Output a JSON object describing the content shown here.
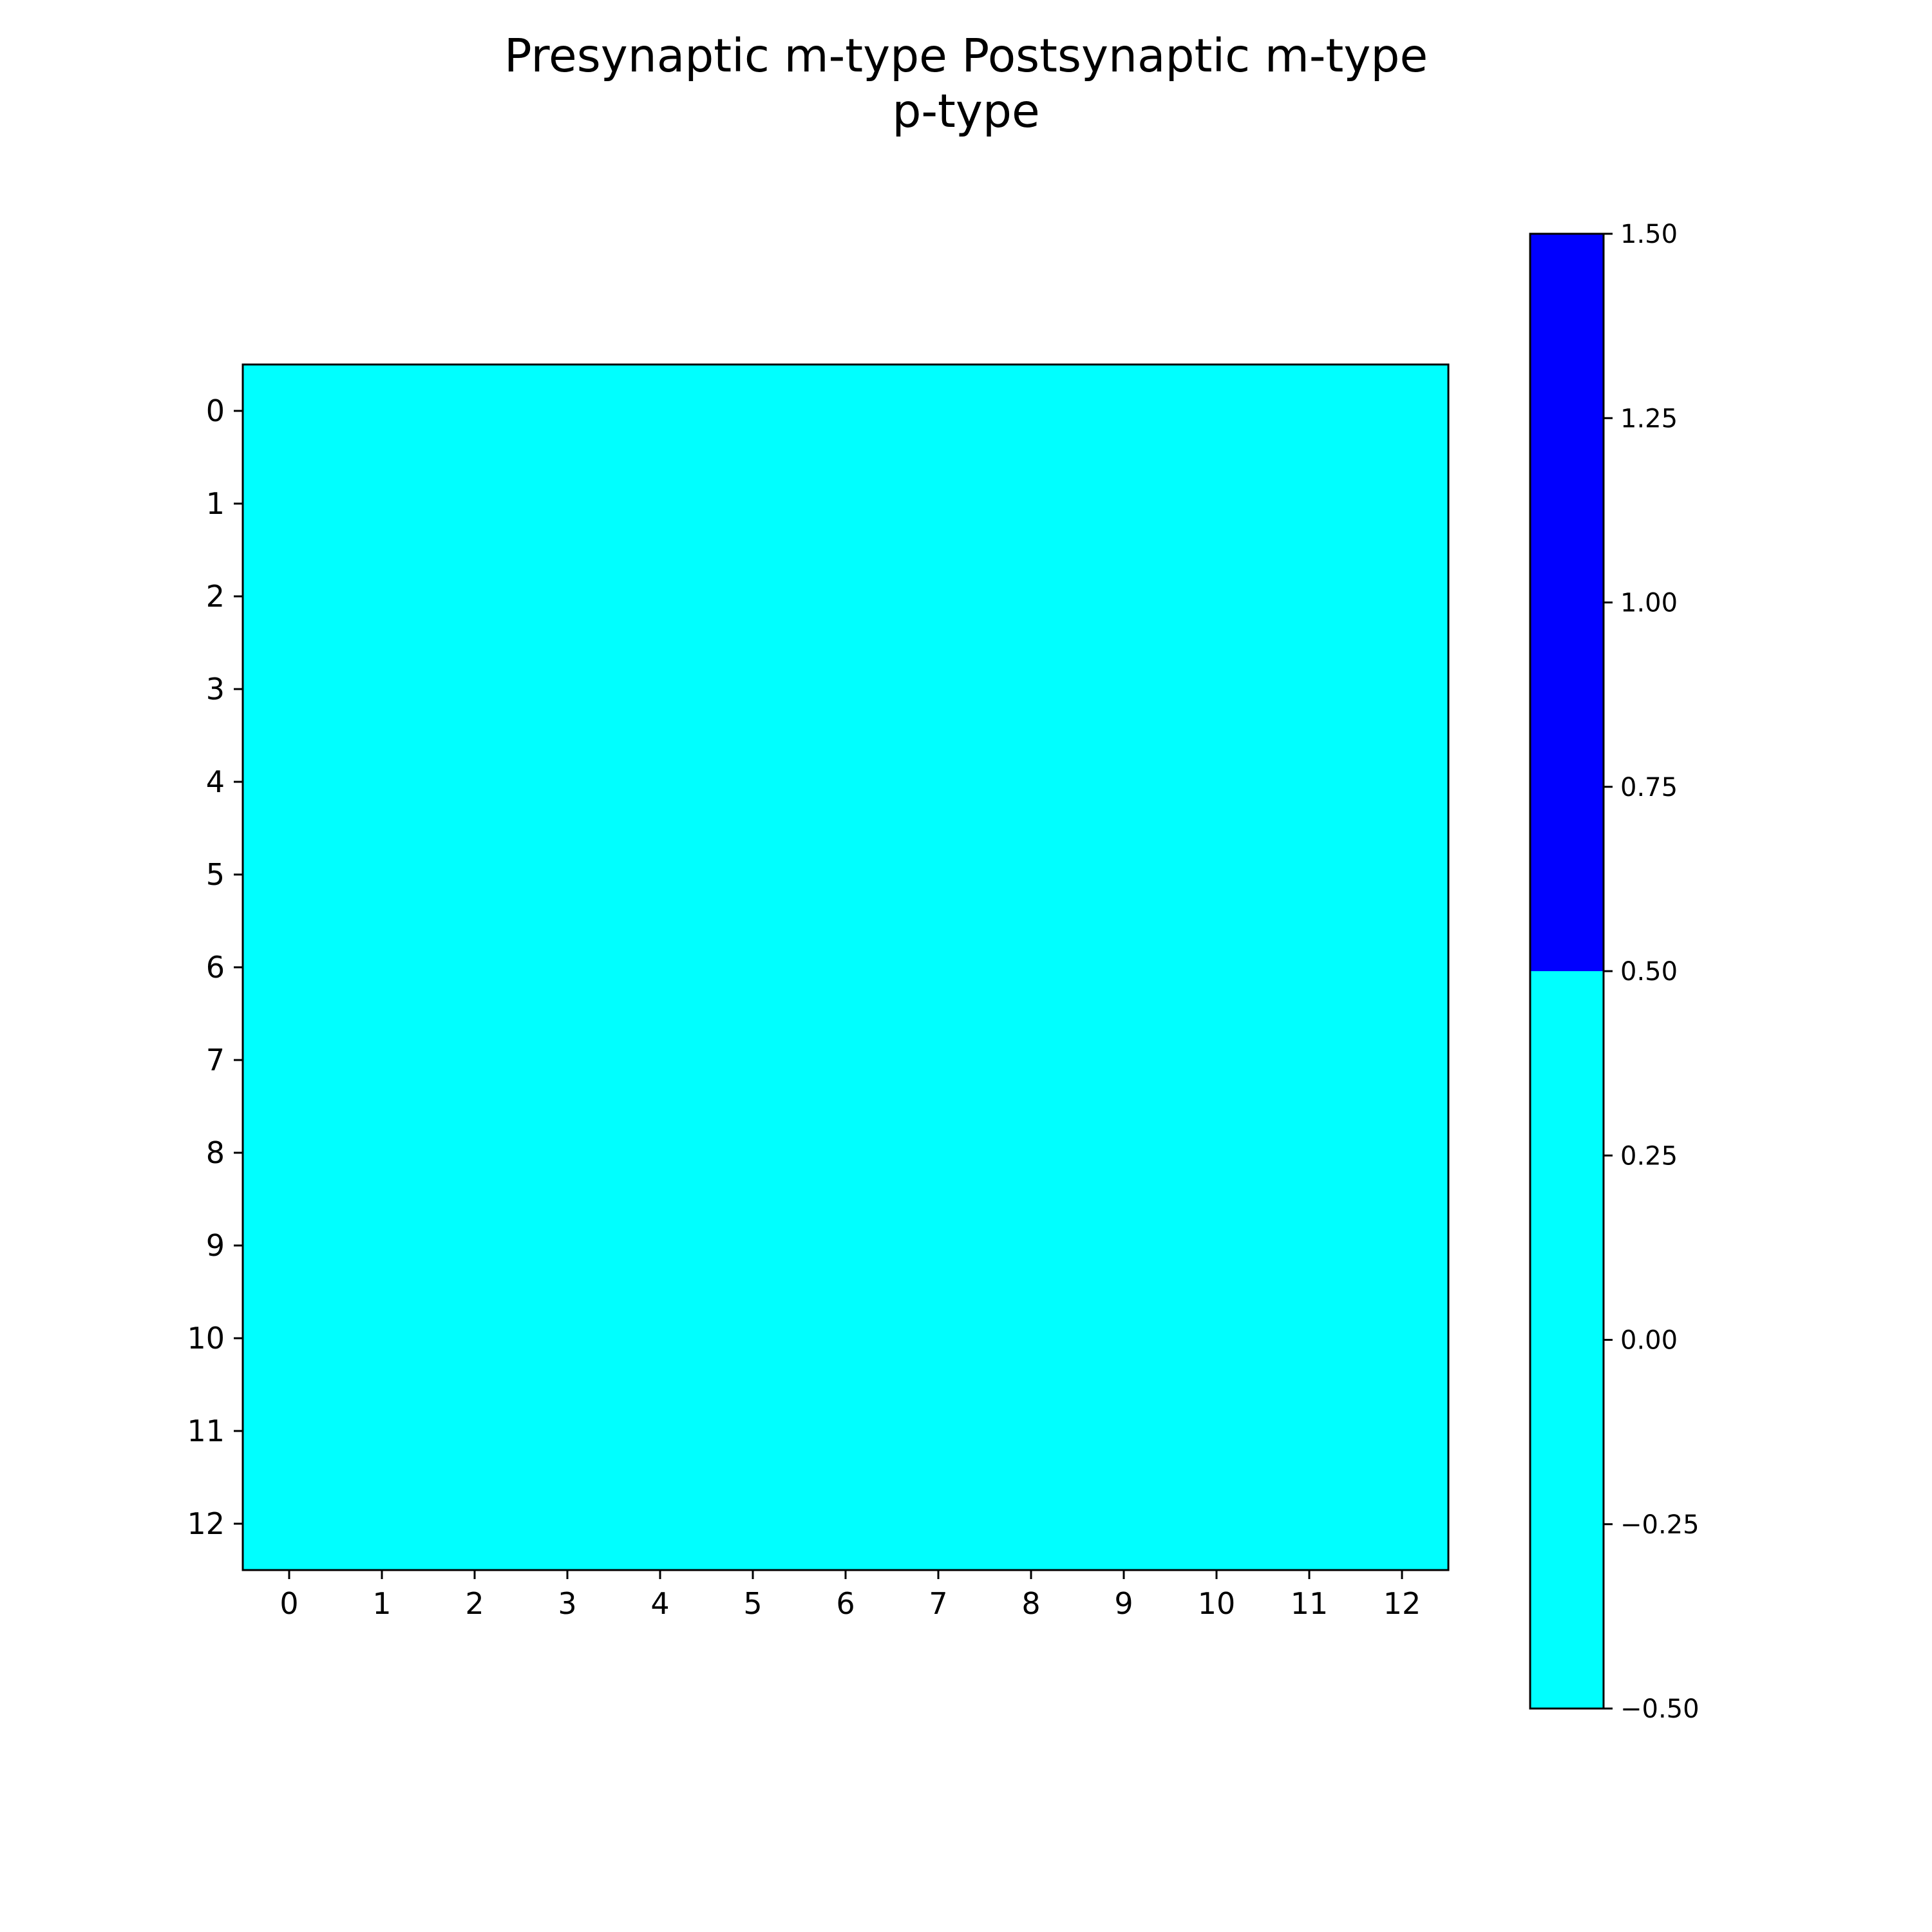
{
  "chart_data": {
    "type": "heatmap",
    "title_lines": [
      "Presynaptic m-type Postsynaptic m-type",
      "p-type"
    ],
    "xlabel": "",
    "ylabel": "",
    "x_categories": [
      "0",
      "1",
      "2",
      "3",
      "4",
      "5",
      "6",
      "7",
      "8",
      "9",
      "10",
      "11",
      "12"
    ],
    "y_categories": [
      "0",
      "1",
      "2",
      "3",
      "4",
      "5",
      "6",
      "7",
      "8",
      "9",
      "10",
      "11",
      "12"
    ],
    "matrix": [
      [
        0,
        0,
        0,
        0,
        0,
        0,
        0,
        0,
        0,
        0,
        0,
        0,
        0
      ],
      [
        0,
        0,
        0,
        0,
        0,
        0,
        0,
        0,
        0,
        0,
        0,
        0,
        0
      ],
      [
        0,
        0,
        0,
        0,
        0,
        0,
        0,
        0,
        0,
        0,
        0,
        0,
        0
      ],
      [
        0,
        0,
        0,
        0,
        0,
        0,
        0,
        0,
        0,
        0,
        0,
        0,
        0
      ],
      [
        0,
        0,
        0,
        0,
        0,
        0,
        0,
        0,
        0,
        0,
        0,
        0,
        0
      ],
      [
        0,
        0,
        0,
        0,
        0,
        0,
        0,
        0,
        0,
        0,
        0,
        0,
        0
      ],
      [
        0,
        0,
        0,
        0,
        0,
        0,
        0,
        0,
        0,
        0,
        0,
        0,
        0
      ],
      [
        0,
        0,
        0,
        0,
        0,
        0,
        0,
        0,
        0,
        0,
        0,
        0,
        0
      ],
      [
        0,
        0,
        0,
        0,
        0,
        0,
        0,
        0,
        0,
        0,
        0,
        0,
        0
      ],
      [
        0,
        0,
        0,
        0,
        0,
        0,
        0,
        0,
        0,
        0,
        0,
        0,
        0
      ],
      [
        0,
        0,
        0,
        0,
        0,
        0,
        0,
        0,
        0,
        0,
        0,
        0,
        0
      ],
      [
        0,
        0,
        0,
        0,
        0,
        0,
        0,
        0,
        0,
        0,
        0,
        0,
        0
      ],
      [
        0,
        0,
        0,
        0,
        0,
        0,
        0,
        0,
        0,
        0,
        0,
        0,
        0
      ]
    ],
    "colormap": [
      {
        "value": 0,
        "color": "#00ffff"
      },
      {
        "value": 1,
        "color": "#0000ff"
      }
    ],
    "colorbar": {
      "range": [
        -0.5,
        1.5
      ],
      "boundary": 0.5,
      "ticks": [
        -0.5,
        -0.25,
        0.0,
        0.25,
        0.5,
        0.75,
        1.0,
        1.25,
        1.5
      ],
      "tick_labels": [
        "−0.50",
        "−0.25",
        "0.00",
        "0.25",
        "0.50",
        "0.75",
        "1.00",
        "1.25",
        "1.50"
      ]
    },
    "grid": false,
    "legend": "colorbar right"
  }
}
